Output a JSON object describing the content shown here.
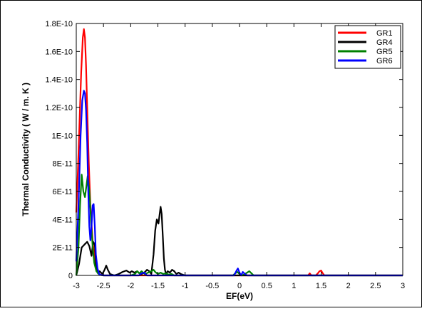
{
  "chart_data": {
    "type": "line",
    "title": "",
    "xlabel": "EF(eV)",
    "ylabel": "Thermal Conductivity  ( W / m. K )",
    "xlim": [
      -3,
      3
    ],
    "ylim": [
      0,
      1.8e-10
    ],
    "x_ticks": [
      "-3",
      "-2.5",
      "-2",
      "-1.5",
      "-1",
      "-0.5",
      "0",
      "0.5",
      "1",
      "1.5",
      "2",
      "2.5",
      "3"
    ],
    "y_ticks": [
      "0",
      "2E-11",
      "4E-11",
      "6E-11",
      "8E-11",
      "1E-10",
      "1.2E-10",
      "1.4E-10",
      "1.6E-10",
      "1.8E-10"
    ],
    "grid": false,
    "legend_position": "top-right",
    "series": [
      {
        "name": "GR1",
        "color": "#ff0000",
        "x": [
          -3.0,
          -2.97,
          -2.94,
          -2.91,
          -2.88,
          -2.86,
          -2.84,
          -2.82,
          -2.8,
          -2.77,
          -2.74,
          -2.7,
          -2.66,
          -2.62,
          -2.58,
          -2.54,
          -2.5,
          -2.0,
          -1.0,
          0.0,
          1.0,
          1.2,
          1.26,
          1.29,
          1.32,
          1.4,
          1.44,
          1.47,
          1.5,
          1.53,
          1.56,
          2.0,
          3.0
        ],
        "y": [
          4.5e-11,
          7.5e-11,
          1.1e-10,
          1.45e-10,
          1.7e-10,
          1.76e-10,
          1.7e-10,
          1.5e-10,
          1.2e-10,
          8e-11,
          5e-11,
          2.5e-11,
          1e-11,
          4e-12,
          1e-12,
          3e-13,
          0,
          0,
          0,
          0,
          0,
          0,
          0,
          1.5e-12,
          0,
          0,
          1.5e-12,
          3e-12,
          3.5e-12,
          1.5e-12,
          0,
          0,
          0
        ]
      },
      {
        "name": "GR4",
        "color": "#000000",
        "x": [
          -3.0,
          -2.95,
          -2.9,
          -2.85,
          -2.8,
          -2.76,
          -2.72,
          -2.69,
          -2.66,
          -2.63,
          -2.6,
          -2.57,
          -2.52,
          -2.48,
          -2.45,
          -2.42,
          -2.38,
          -2.3,
          -2.22,
          -2.15,
          -2.08,
          -2.02,
          -1.98,
          -1.93,
          -1.88,
          -1.84,
          -1.8,
          -1.75,
          -1.7,
          -1.66,
          -1.62,
          -1.58,
          -1.55,
          -1.52,
          -1.49,
          -1.47,
          -1.45,
          -1.43,
          -1.41,
          -1.39,
          -1.37,
          -1.35,
          -1.32,
          -1.28,
          -1.24,
          -1.2,
          -1.16,
          -1.12,
          -1.08,
          -1.04,
          -1.0,
          -0.5,
          0.0,
          3.0
        ],
        "y": [
          0,
          8e-12,
          2e-11,
          2.2e-11,
          2.4e-11,
          2.1e-11,
          1.4e-11,
          2.4e-11,
          2.2e-11,
          5e-12,
          1.5e-12,
          3e-12,
          1e-12,
          4e-12,
          7e-12,
          4e-12,
          1e-12,
          0,
          1e-12,
          2.5e-12,
          3.5e-12,
          2e-12,
          3e-12,
          2e-12,
          3e-12,
          1.5e-12,
          1e-12,
          2e-12,
          4e-12,
          3e-12,
          1e-12,
          1.5e-11,
          3.2e-11,
          4e-11,
          3.7e-11,
          4.3e-11,
          4.9e-11,
          4.4e-11,
          2.8e-11,
          1.2e-11,
          4e-12,
          1e-12,
          3e-12,
          2e-12,
          4e-12,
          3e-12,
          1e-12,
          2e-12,
          1e-12,
          5e-13,
          0,
          0,
          0,
          0
        ]
      },
      {
        "name": "GR5",
        "color": "#008000",
        "x": [
          -3.0,
          -2.96,
          -2.93,
          -2.9,
          -2.87,
          -2.84,
          -2.81,
          -2.79,
          -2.76,
          -2.73,
          -2.7,
          -2.67,
          -2.63,
          -2.59,
          -2.55,
          -2.5,
          -2.0,
          -1.92,
          -1.88,
          -1.84,
          -1.8,
          -1.74,
          -1.68,
          -1.62,
          -1.58,
          -1.55,
          -1.5,
          -1.45,
          -1.4,
          -1.35,
          -1.3,
          -1.25,
          -1.2,
          -0.5,
          -0.12,
          -0.08,
          -0.04,
          0.0,
          0.05,
          0.1,
          0.14,
          0.18,
          0.22,
          0.26,
          0.5,
          3.0
        ],
        "y": [
          0,
          2e-11,
          5e-11,
          7.2e-11,
          6e-11,
          5.6e-11,
          6.5e-11,
          7.1e-11,
          6.1e-11,
          4e-11,
          2.1e-11,
          9e-12,
          3e-12,
          1e-12,
          3e-13,
          0,
          0,
          1e-12,
          3e-12,
          1.5e-12,
          3e-12,
          1e-12,
          2e-12,
          3e-12,
          4e-12,
          2.5e-12,
          1e-12,
          2e-12,
          1e-12,
          1.5e-12,
          5e-13,
          1e-12,
          0,
          0,
          0,
          1.5e-12,
          2.5e-12,
          1e-12,
          0,
          1e-12,
          2e-12,
          3e-12,
          1.5e-12,
          0,
          0,
          0
        ]
      },
      {
        "name": "GR6",
        "color": "#0000ff",
        "x": [
          -3.0,
          -2.96,
          -2.92,
          -2.89,
          -2.86,
          -2.84,
          -2.82,
          -2.8,
          -2.78,
          -2.76,
          -2.74,
          -2.72,
          -2.7,
          -2.68,
          -2.66,
          -2.64,
          -2.61,
          -2.58,
          -2.55,
          -2.5,
          -1.85,
          -1.8,
          -1.75,
          -1.7,
          -1.5,
          -0.1,
          -0.06,
          -0.03,
          0.0,
          0.03,
          0.06,
          0.1,
          0.14,
          3.0
        ],
        "y": [
          1e-11,
          5e-11,
          1e-10,
          1.25e-10,
          1.32e-10,
          1.3e-10,
          1.18e-10,
          9.5e-11,
          6e-11,
          3.5e-11,
          2.5e-11,
          3.5e-11,
          5e-11,
          5.1e-11,
          3.5e-11,
          1.5e-11,
          5e-12,
          1e-12,
          3e-13,
          0,
          0,
          1.5e-12,
          2e-12,
          0,
          0,
          0,
          3e-12,
          5e-12,
          2e-12,
          0,
          2.5e-12,
          1e-12,
          0,
          0
        ]
      }
    ]
  }
}
